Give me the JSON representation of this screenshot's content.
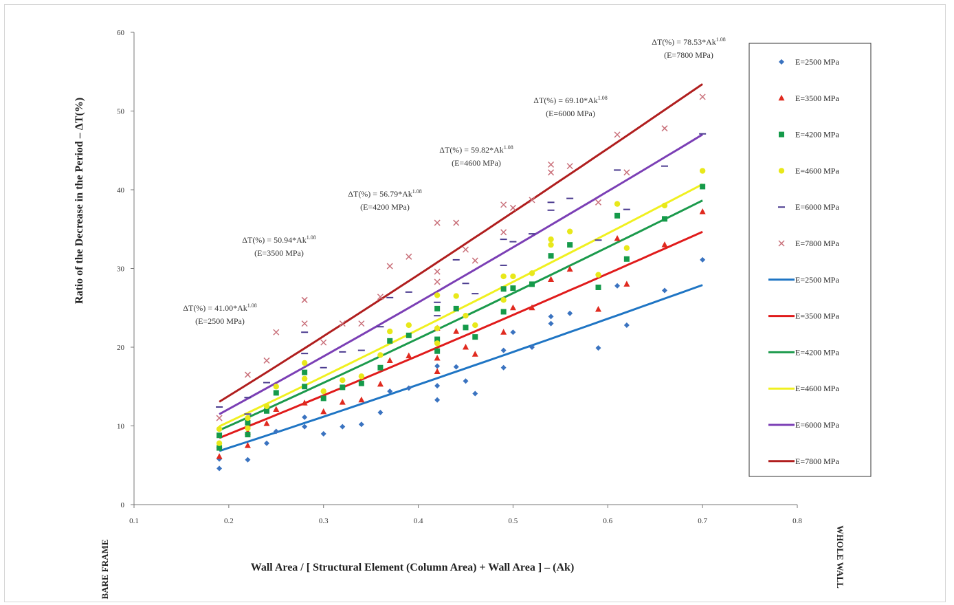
{
  "chart_data": {
    "type": "scatter",
    "xlabel": "Wall Area / [ Structural  Element (Column  Area) + Wall Area ] – (Ak)",
    "ylabel": "Ratio of the Decrease in the Period – ΔT(%)",
    "xlim": [
      0.1,
      0.8
    ],
    "ylim": [
      0,
      60
    ],
    "x_ticks": [
      0.1,
      0.2,
      0.3,
      0.4,
      0.5,
      0.6,
      0.7,
      0.8
    ],
    "y_ticks": [
      0,
      10,
      20,
      30,
      40,
      50,
      60
    ],
    "x_tick_labels": [
      "0.1",
      "0.2",
      "0.3",
      "0.4",
      "0.5",
      "0.6",
      "0.7",
      "0.8"
    ],
    "y_tick_labels": [
      "0",
      "10",
      "20",
      "30",
      "40",
      "50",
      "60"
    ],
    "grid": false,
    "legend_position": "right",
    "left_end_label": "BARE FRAME",
    "right_end_label": "WHOLE WALL",
    "series": [
      {
        "name": "E=2500 MPa",
        "marker": "diamond",
        "color": "#3a73c0",
        "points": [
          [
            0.19,
            4.6
          ],
          [
            0.19,
            5.8
          ],
          [
            0.22,
            5.7
          ],
          [
            0.24,
            7.8
          ],
          [
            0.25,
            9.3
          ],
          [
            0.28,
            9.9
          ],
          [
            0.28,
            11.1
          ],
          [
            0.3,
            9.0
          ],
          [
            0.32,
            9.9
          ],
          [
            0.34,
            10.2
          ],
          [
            0.36,
            11.7
          ],
          [
            0.37,
            14.4
          ],
          [
            0.39,
            14.8
          ],
          [
            0.42,
            13.3
          ],
          [
            0.42,
            15.1
          ],
          [
            0.42,
            17.6
          ],
          [
            0.44,
            17.5
          ],
          [
            0.45,
            15.7
          ],
          [
            0.46,
            14.1
          ],
          [
            0.49,
            17.4
          ],
          [
            0.49,
            19.6
          ],
          [
            0.5,
            21.9
          ],
          [
            0.52,
            20.0
          ],
          [
            0.54,
            23.0
          ],
          [
            0.54,
            23.9
          ],
          [
            0.56,
            24.3
          ],
          [
            0.59,
            19.9
          ],
          [
            0.61,
            27.8
          ],
          [
            0.62,
            22.8
          ],
          [
            0.66,
            27.2
          ],
          [
            0.7,
            31.1
          ]
        ]
      },
      {
        "name": "E=3500 MPa",
        "marker": "triangle",
        "color": "#e02a1f",
        "points": [
          [
            0.19,
            6.1
          ],
          [
            0.19,
            7.5
          ],
          [
            0.22,
            7.5
          ],
          [
            0.22,
            9.2
          ],
          [
            0.24,
            10.3
          ],
          [
            0.25,
            12.1
          ],
          [
            0.28,
            12.9
          ],
          [
            0.3,
            11.8
          ],
          [
            0.32,
            13.0
          ],
          [
            0.34,
            13.3
          ],
          [
            0.36,
            15.3
          ],
          [
            0.37,
            18.3
          ],
          [
            0.39,
            18.9
          ],
          [
            0.42,
            16.9
          ],
          [
            0.42,
            18.6
          ],
          [
            0.42,
            22.4
          ],
          [
            0.44,
            22.0
          ],
          [
            0.45,
            20.0
          ],
          [
            0.46,
            19.1
          ],
          [
            0.49,
            21.9
          ],
          [
            0.5,
            25.0
          ],
          [
            0.52,
            25.0
          ],
          [
            0.54,
            28.6
          ],
          [
            0.56,
            29.9
          ],
          [
            0.59,
            24.8
          ],
          [
            0.61,
            33.8
          ],
          [
            0.62,
            28.0
          ],
          [
            0.66,
            33.0
          ],
          [
            0.7,
            37.2
          ]
        ]
      },
      {
        "name": "E=4200 MPa",
        "marker": "square",
        "color": "#159a4a",
        "points": [
          [
            0.19,
            7.2
          ],
          [
            0.19,
            8.8
          ],
          [
            0.22,
            8.9
          ],
          [
            0.22,
            10.4
          ],
          [
            0.24,
            11.9
          ],
          [
            0.25,
            14.2
          ],
          [
            0.28,
            15.0
          ],
          [
            0.28,
            16.8
          ],
          [
            0.3,
            13.5
          ],
          [
            0.32,
            14.9
          ],
          [
            0.34,
            15.4
          ],
          [
            0.36,
            17.4
          ],
          [
            0.37,
            20.8
          ],
          [
            0.39,
            21.5
          ],
          [
            0.42,
            19.5
          ],
          [
            0.42,
            21.0
          ],
          [
            0.42,
            24.9
          ],
          [
            0.44,
            24.9
          ],
          [
            0.45,
            22.5
          ],
          [
            0.46,
            21.3
          ],
          [
            0.49,
            24.5
          ],
          [
            0.49,
            27.4
          ],
          [
            0.5,
            27.5
          ],
          [
            0.52,
            28.0
          ],
          [
            0.54,
            31.6
          ],
          [
            0.56,
            33.0
          ],
          [
            0.59,
            27.6
          ],
          [
            0.61,
            36.7
          ],
          [
            0.62,
            31.2
          ],
          [
            0.66,
            36.3
          ],
          [
            0.7,
            40.4
          ]
        ]
      },
      {
        "name": "E=4600 MPa",
        "marker": "circle",
        "color": "#e8e81a",
        "points": [
          [
            0.19,
            7.8
          ],
          [
            0.19,
            9.6
          ],
          [
            0.22,
            9.7
          ],
          [
            0.22,
            11.0
          ],
          [
            0.24,
            12.5
          ],
          [
            0.25,
            15.0
          ],
          [
            0.28,
            16.0
          ],
          [
            0.28,
            18.0
          ],
          [
            0.3,
            14.4
          ],
          [
            0.32,
            15.8
          ],
          [
            0.34,
            16.3
          ],
          [
            0.36,
            19.0
          ],
          [
            0.37,
            22.0
          ],
          [
            0.39,
            22.8
          ],
          [
            0.42,
            20.5
          ],
          [
            0.42,
            22.4
          ],
          [
            0.42,
            26.6
          ],
          [
            0.44,
            26.5
          ],
          [
            0.45,
            24.0
          ],
          [
            0.46,
            22.8
          ],
          [
            0.49,
            26.0
          ],
          [
            0.49,
            29.0
          ],
          [
            0.5,
            29.0
          ],
          [
            0.52,
            29.4
          ],
          [
            0.54,
            33.0
          ],
          [
            0.54,
            33.7
          ],
          [
            0.56,
            34.7
          ],
          [
            0.59,
            29.2
          ],
          [
            0.61,
            38.2
          ],
          [
            0.62,
            32.6
          ],
          [
            0.66,
            38.0
          ],
          [
            0.7,
            42.4
          ]
        ]
      },
      {
        "name": "E=6000 MPa",
        "marker": "dash",
        "color": "#4a3a8f",
        "points": [
          [
            0.19,
            12.4
          ],
          [
            0.22,
            11.5
          ],
          [
            0.22,
            13.6
          ],
          [
            0.24,
            15.5
          ],
          [
            0.28,
            19.2
          ],
          [
            0.28,
            21.9
          ],
          [
            0.3,
            17.4
          ],
          [
            0.32,
            19.4
          ],
          [
            0.34,
            19.6
          ],
          [
            0.36,
            22.6
          ],
          [
            0.37,
            26.3
          ],
          [
            0.39,
            27.0
          ],
          [
            0.42,
            25.7
          ],
          [
            0.42,
            24.0
          ],
          [
            0.44,
            31.1
          ],
          [
            0.45,
            28.1
          ],
          [
            0.46,
            26.8
          ],
          [
            0.49,
            30.4
          ],
          [
            0.49,
            33.7
          ],
          [
            0.5,
            33.4
          ],
          [
            0.52,
            34.4
          ],
          [
            0.54,
            37.4
          ],
          [
            0.54,
            38.4
          ],
          [
            0.56,
            38.9
          ],
          [
            0.59,
            33.6
          ],
          [
            0.61,
            42.5
          ],
          [
            0.62,
            37.5
          ],
          [
            0.66,
            43.0
          ],
          [
            0.7,
            47.1
          ]
        ]
      },
      {
        "name": "E=7800 MPa",
        "marker": "x",
        "color": "#c9707a",
        "points": [
          [
            0.19,
            11.0
          ],
          [
            0.22,
            16.5
          ],
          [
            0.24,
            18.3
          ],
          [
            0.25,
            21.9
          ],
          [
            0.28,
            23.0
          ],
          [
            0.28,
            26.0
          ],
          [
            0.3,
            20.6
          ],
          [
            0.32,
            23.0
          ],
          [
            0.34,
            23.0
          ],
          [
            0.36,
            26.4
          ],
          [
            0.37,
            30.3
          ],
          [
            0.39,
            31.5
          ],
          [
            0.42,
            28.3
          ],
          [
            0.42,
            29.6
          ],
          [
            0.42,
            35.8
          ],
          [
            0.44,
            35.8
          ],
          [
            0.45,
            32.4
          ],
          [
            0.46,
            31.0
          ],
          [
            0.49,
            34.6
          ],
          [
            0.49,
            38.1
          ],
          [
            0.5,
            37.7
          ],
          [
            0.52,
            38.7
          ],
          [
            0.54,
            42.2
          ],
          [
            0.54,
            43.2
          ],
          [
            0.56,
            43.0
          ],
          [
            0.59,
            38.4
          ],
          [
            0.61,
            47.0
          ],
          [
            0.62,
            42.2
          ],
          [
            0.66,
            47.8
          ],
          [
            0.7,
            51.8
          ]
        ]
      }
    ],
    "fit_lines": [
      {
        "name": "E=2500 MPa",
        "color": "#1f75c4",
        "coefficient": 41.0,
        "exponent": 1.08
      },
      {
        "name": "E=3500 MPa",
        "color": "#e01b1b",
        "coefficient": 50.94,
        "exponent": 1.08
      },
      {
        "name": "E=4200 MPa",
        "color": "#1b9a4c",
        "coefficient": 56.79,
        "exponent": 1.08
      },
      {
        "name": "E=4600 MPa",
        "color": "#f0f020",
        "coefficient": 59.82,
        "exponent": 1.08
      },
      {
        "name": "E=6000 MPa",
        "color": "#7b3fb5",
        "coefficient": 69.1,
        "exponent": 1.08
      },
      {
        "name": "E=7800 MPa",
        "color": "#b01e1e",
        "coefficient": 78.53,
        "exponent": 1.08
      }
    ],
    "fit_x_range": [
      0.19,
      0.7
    ],
    "annotations": [
      {
        "equation": "ΔT(%) = 41.00*Ak",
        "exp": "1.08",
        "label": "(E=2500  MPa)"
      },
      {
        "equation": "ΔT(%) = 50.94*Ak",
        "exp": "1.08",
        "label": "(E=3500  MPa)"
      },
      {
        "equation": "ΔT(%) = 56.79*Ak",
        "exp": "1.08",
        "label": "(E=4200  MPa)"
      },
      {
        "equation": "ΔT(%) = 59.82*Ak",
        "exp": "1.08",
        "label": "(E=4600  MPa)"
      },
      {
        "equation": "ΔT(%) = 69.10*Ak",
        "exp": "1.08",
        "label": "(E=6000  MPa)"
      },
      {
        "equation": "ΔT(%) = 78.53*Ak",
        "exp": "1.08",
        "label": "(E=7800  MPa)"
      }
    ]
  }
}
